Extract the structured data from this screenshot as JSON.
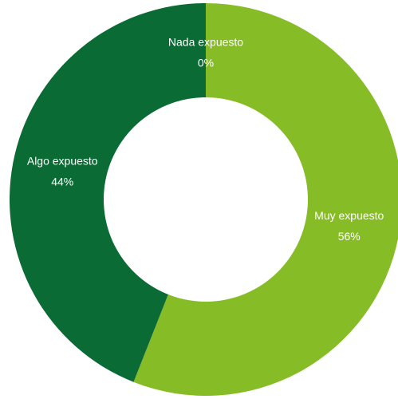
{
  "chart_data": {
    "type": "donut",
    "categories": [
      "Nada expuesto",
      "Muy expuesto",
      "Algo expuesto"
    ],
    "values": [
      0,
      56,
      44
    ],
    "value_labels": [
      "0%",
      "56%",
      "44%"
    ],
    "colors": [
      "#c8c8c8",
      "#86bc25",
      "#0b6b34"
    ]
  }
}
